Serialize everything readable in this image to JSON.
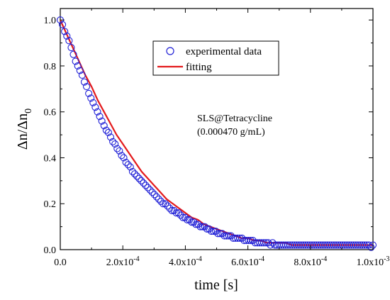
{
  "chart_data": {
    "type": "scatter",
    "xlabel": "time [s]",
    "ylabel": "Δn/Δn",
    "ylabel_sub": "0",
    "xlim": [
      0,
      0.001
    ],
    "ylim": [
      0,
      1.05
    ],
    "x_ticks": [
      0,
      0.0002,
      0.0004,
      0.0006,
      0.0008,
      0.001
    ],
    "x_tick_labels": [
      {
        "base": "0.0",
        "exp": ""
      },
      {
        "base": "2.0x10",
        "exp": "-4"
      },
      {
        "base": "4.0x10",
        "exp": "-4"
      },
      {
        "base": "6.0x10",
        "exp": "-4"
      },
      {
        "base": "8.0x10",
        "exp": "-4"
      },
      {
        "base": "1.0x10",
        "exp": "-3"
      }
    ],
    "y_ticks": [
      0.0,
      0.2,
      0.4,
      0.6,
      0.8,
      1.0
    ],
    "y_tick_labels": [
      "0.0",
      "0.2",
      "0.4",
      "0.6",
      "0.8",
      "1.0"
    ],
    "annotation": [
      "SLS@Tetracycline",
      "(0.000470 g/mL)"
    ],
    "legend_position": "upper-right",
    "grid": false,
    "series": [
      {
        "name": "experimental data",
        "kind": "markers",
        "marker": "open-circle",
        "color": "#1f1fd6",
        "x": [
          0.0,
          7e-06,
          1.4e-05,
          2.1e-05,
          2.8e-05,
          3.5e-05,
          4.2e-05,
          4.9e-05,
          5.6e-05,
          6.3e-05,
          7e-05,
          7.7e-05,
          8.4e-05,
          9.1e-05,
          9.8e-05,
          0.000105,
          0.000112,
          0.000119,
          0.000126,
          0.000133,
          0.00014,
          0.000147,
          0.000154,
          0.000161,
          0.000168,
          0.000175,
          0.000182,
          0.000189,
          0.000196,
          0.000203,
          0.00021,
          0.000217,
          0.000224,
          0.000231,
          0.000238,
          0.000245,
          0.000252,
          0.000259,
          0.000266,
          0.000273,
          0.00028,
          0.000287,
          0.000294,
          0.000301,
          0.000308,
          0.000315,
          0.000322,
          0.000329,
          0.000336,
          0.000343,
          0.00035,
          0.000357,
          0.000364,
          0.000371,
          0.000378,
          0.000385,
          0.000392,
          0.000399,
          0.000406,
          0.000413,
          0.00042,
          0.000427,
          0.000434,
          0.000441,
          0.000448,
          0.000455,
          0.000462,
          0.000469,
          0.000476,
          0.000483,
          0.00049,
          0.000497,
          0.000504,
          0.000511,
          0.000518,
          0.000525,
          0.000532,
          0.000539,
          0.000546,
          0.000553,
          0.00056,
          0.000567,
          0.000574,
          0.000581,
          0.000588,
          0.000595,
          0.000602,
          0.000609,
          0.000616,
          0.000623,
          0.00063,
          0.000637,
          0.000644,
          0.000651,
          0.000658,
          0.000665,
          0.000672,
          0.000679,
          0.000686,
          0.000693,
          0.0007,
          0.000707,
          0.000714,
          0.000721,
          0.000728,
          0.000735,
          0.000742,
          0.000749,
          0.000756,
          0.000763,
          0.00077,
          0.000777,
          0.000784,
          0.000791,
          0.000798,
          0.000805,
          0.000812,
          0.000819,
          0.000826,
          0.000833,
          0.00084,
          0.000847,
          0.000854,
          0.000861,
          0.000868,
          0.000875,
          0.000882,
          0.000889,
          0.000896,
          0.000903,
          0.00091,
          0.000917,
          0.000924,
          0.000931,
          0.000938,
          0.000945,
          0.000952,
          0.000959,
          0.000966,
          0.000973,
          0.00098,
          0.000987,
          0.000994,
          0.001
        ],
        "y": [
          1.0,
          0.98,
          0.95,
          0.93,
          0.91,
          0.88,
          0.85,
          0.82,
          0.8,
          0.78,
          0.76,
          0.73,
          0.71,
          0.68,
          0.66,
          0.64,
          0.62,
          0.6,
          0.58,
          0.56,
          0.54,
          0.52,
          0.51,
          0.49,
          0.47,
          0.46,
          0.44,
          0.43,
          0.41,
          0.4,
          0.38,
          0.37,
          0.36,
          0.34,
          0.33,
          0.32,
          0.31,
          0.3,
          0.29,
          0.28,
          0.27,
          0.26,
          0.25,
          0.24,
          0.23,
          0.22,
          0.21,
          0.2,
          0.2,
          0.19,
          0.18,
          0.17,
          0.17,
          0.16,
          0.16,
          0.15,
          0.14,
          0.14,
          0.13,
          0.13,
          0.12,
          0.12,
          0.11,
          0.11,
          0.1,
          0.1,
          0.1,
          0.09,
          0.09,
          0.08,
          0.08,
          0.08,
          0.07,
          0.07,
          0.07,
          0.06,
          0.06,
          0.06,
          0.06,
          0.05,
          0.05,
          0.05,
          0.05,
          0.05,
          0.04,
          0.04,
          0.04,
          0.04,
          0.04,
          0.03,
          0.03,
          0.03,
          0.03,
          0.03,
          0.03,
          0.03,
          0.02,
          0.03,
          0.02,
          0.02,
          0.02,
          0.02,
          0.02,
          0.02,
          0.02,
          0.02,
          0.02,
          0.02,
          0.02,
          0.02,
          0.02,
          0.02,
          0.02,
          0.02,
          0.02,
          0.02,
          0.02,
          0.02,
          0.02,
          0.02,
          0.02,
          0.02,
          0.02,
          0.02,
          0.02,
          0.02,
          0.02,
          0.02,
          0.02,
          0.02,
          0.02,
          0.02,
          0.02,
          0.02,
          0.02,
          0.02,
          0.02,
          0.02,
          0.02,
          0.02,
          0.02,
          0.02,
          0.01,
          0.02
        ]
      },
      {
        "name": "fitting",
        "kind": "line",
        "color": "#e31a1c",
        "x": [
          0.0,
          2e-05,
          4e-05,
          6e-05,
          8e-05,
          0.0001,
          0.00012,
          0.00014,
          0.00016,
          0.00018,
          0.0002,
          0.00022,
          0.00024,
          0.00026,
          0.00028,
          0.0003,
          0.00032,
          0.00034,
          0.00036,
          0.00038,
          0.0004,
          0.00042,
          0.00044,
          0.00046,
          0.00048,
          0.0005,
          0.00052,
          0.00054,
          0.00056,
          0.00058,
          0.0006,
          0.00062,
          0.00064,
          0.00066,
          0.00068,
          0.0007,
          0.00072,
          0.00074,
          0.00076,
          0.00078,
          0.0008,
          0.00082,
          0.00084,
          0.00086,
          0.00088,
          0.0009,
          0.00092,
          0.00094,
          0.00096,
          0.00098,
          0.001
        ],
        "y": [
          1.0,
          0.94,
          0.88,
          0.82,
          0.76,
          0.71,
          0.65,
          0.6,
          0.55,
          0.5,
          0.46,
          0.42,
          0.38,
          0.34,
          0.31,
          0.28,
          0.25,
          0.22,
          0.2,
          0.18,
          0.16,
          0.14,
          0.13,
          0.11,
          0.1,
          0.09,
          0.08,
          0.07,
          0.06,
          0.05,
          0.05,
          0.04,
          0.04,
          0.03,
          0.03,
          0.03,
          0.03,
          0.02,
          0.02,
          0.02,
          0.02,
          0.02,
          0.02,
          0.02,
          0.02,
          0.02,
          0.02,
          0.02,
          0.02,
          0.02,
          0.02
        ]
      }
    ]
  }
}
